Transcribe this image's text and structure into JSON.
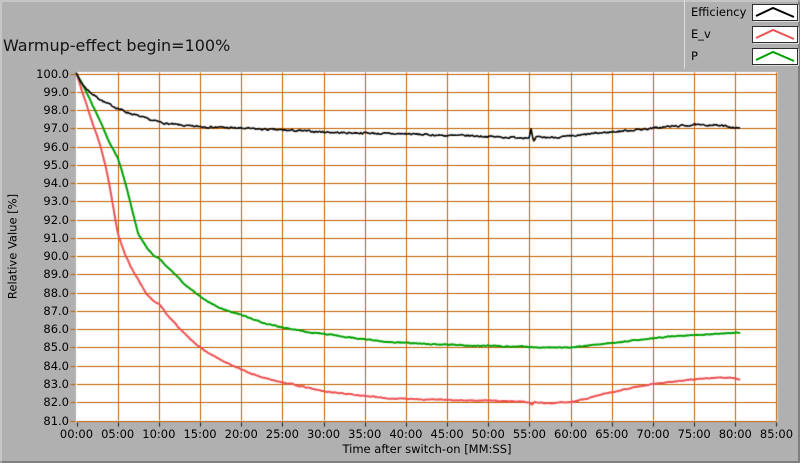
{
  "title": "Warmup-effect begin=100%",
  "colors": {
    "panel_bg": "#b0b0b0",
    "plot_bg": "#ffffff",
    "grid": "#c06100",
    "x_tick": "#1a1a1a",
    "efficiency_line": "#000000",
    "ev_line": "#ed5151",
    "p_line": "#00a000"
  },
  "legend": {
    "items": [
      {
        "label": "Efficiency",
        "color": "#000000"
      },
      {
        "label": "E_v",
        "color": "#ed5151"
      },
      {
        "label": "P",
        "color": "#00a000"
      }
    ]
  },
  "chart_data": {
    "type": "line",
    "title": "Warmup-effect begin=100%",
    "xlabel": "Time after switch-on [MM:SS]",
    "ylabel": "Relative Value [%]",
    "xlim_minutes": [
      0,
      85
    ],
    "ylim": [
      81.0,
      100.0
    ],
    "grid": "on",
    "legend_position": "top-right",
    "x_ticks": [
      "00:00",
      "05:00",
      "10:00",
      "15:00",
      "20:00",
      "25:00",
      "30:00",
      "35:00",
      "40:00",
      "45:00",
      "50:00",
      "55:00",
      "60:00",
      "65:00",
      "70:00",
      "75:00",
      "80:00",
      "85:00"
    ],
    "y_ticks": [
      "100.0",
      "99.0",
      "98.0",
      "97.0",
      "96.0",
      "95.0",
      "94.0",
      "93.0",
      "92.0",
      "91.0",
      "90.0",
      "89.0",
      "88.0",
      "87.0",
      "86.0",
      "85.0",
      "84.0",
      "83.0",
      "82.0",
      "81.0"
    ],
    "series": [
      {
        "name": "Efficiency",
        "color": "#000000",
        "line_width": 1.6,
        "noise": 0.085,
        "seed": 7,
        "points": [
          [
            0,
            100
          ],
          [
            0.5,
            99.55
          ],
          [
            1,
            99.25
          ],
          [
            1.5,
            99.05
          ],
          [
            2,
            98.85
          ],
          [
            2.5,
            98.7
          ],
          [
            3,
            98.55
          ],
          [
            3.5,
            98.4
          ],
          [
            4,
            98.3
          ],
          [
            4.5,
            98.2
          ],
          [
            5,
            98.1
          ],
          [
            6,
            97.9
          ],
          [
            7,
            97.75
          ],
          [
            8,
            97.6
          ],
          [
            9,
            97.45
          ],
          [
            10,
            97.35
          ],
          [
            11,
            97.25
          ],
          [
            12,
            97.2
          ],
          [
            13,
            97.15
          ],
          [
            14,
            97.1
          ],
          [
            15,
            97.1
          ],
          [
            17.5,
            97.05
          ],
          [
            20,
            97.0
          ],
          [
            22.5,
            96.95
          ],
          [
            25,
            96.9
          ],
          [
            27.5,
            96.85
          ],
          [
            30,
            96.8
          ],
          [
            32.5,
            96.75
          ],
          [
            35,
            96.75
          ],
          [
            37.5,
            96.7
          ],
          [
            40,
            96.7
          ],
          [
            42.5,
            96.65
          ],
          [
            45,
            96.6
          ],
          [
            47.5,
            96.6
          ],
          [
            50,
            96.55
          ],
          [
            52.5,
            96.5
          ],
          [
            55,
            96.5
          ],
          [
            55.2,
            96.95
          ],
          [
            55.5,
            96.2
          ],
          [
            55.8,
            96.5
          ],
          [
            57.5,
            96.5
          ],
          [
            60,
            96.55
          ],
          [
            61,
            96.6
          ],
          [
            62.5,
            96.7
          ],
          [
            65,
            96.8
          ],
          [
            67.5,
            96.9
          ],
          [
            70,
            97.0
          ],
          [
            72,
            97.1
          ],
          [
            74,
            97.15
          ],
          [
            75,
            97.2
          ],
          [
            76,
            97.15
          ],
          [
            77,
            97.2
          ],
          [
            78,
            97.15
          ],
          [
            79,
            97.1
          ],
          [
            80,
            97.05
          ],
          [
            80.6,
            96.95
          ]
        ]
      },
      {
        "name": "E_v",
        "color": "#ed5151",
        "line_width": 2.0,
        "noise": 0.04,
        "seed": 13,
        "points": [
          [
            0,
            100
          ],
          [
            0.5,
            99.3
          ],
          [
            1,
            98.6
          ],
          [
            1.5,
            97.9
          ],
          [
            2,
            97.2
          ],
          [
            2.5,
            96.6
          ],
          [
            3,
            95.9
          ],
          [
            3.5,
            95.0
          ],
          [
            4,
            93.9
          ],
          [
            4.5,
            92.6
          ],
          [
            5,
            91.3
          ],
          [
            5.5,
            90.6
          ],
          [
            6,
            90.0
          ],
          [
            6.5,
            89.5
          ],
          [
            7,
            89.1
          ],
          [
            7.5,
            88.7
          ],
          [
            8,
            88.3
          ],
          [
            8.5,
            87.9
          ],
          [
            9,
            87.7
          ],
          [
            9.5,
            87.5
          ],
          [
            10,
            87.4
          ],
          [
            11,
            86.8
          ],
          [
            12,
            86.3
          ],
          [
            13,
            85.8
          ],
          [
            14,
            85.4
          ],
          [
            15,
            85.0
          ],
          [
            16,
            84.7
          ],
          [
            17,
            84.45
          ],
          [
            18,
            84.2
          ],
          [
            19,
            84.0
          ],
          [
            20,
            83.8
          ],
          [
            21,
            83.6
          ],
          [
            22,
            83.45
          ],
          [
            23,
            83.3
          ],
          [
            24,
            83.2
          ],
          [
            25,
            83.1
          ],
          [
            26,
            83.0
          ],
          [
            27,
            82.9
          ],
          [
            28,
            82.8
          ],
          [
            29,
            82.7
          ],
          [
            30,
            82.6
          ],
          [
            31,
            82.55
          ],
          [
            32,
            82.5
          ],
          [
            33,
            82.45
          ],
          [
            34,
            82.4
          ],
          [
            35,
            82.35
          ],
          [
            36,
            82.3
          ],
          [
            37,
            82.25
          ],
          [
            38,
            82.2
          ],
          [
            40,
            82.2
          ],
          [
            42,
            82.15
          ],
          [
            44,
            82.15
          ],
          [
            46,
            82.1
          ],
          [
            48,
            82.1
          ],
          [
            50,
            82.1
          ],
          [
            52,
            82.05
          ],
          [
            54,
            82.05
          ],
          [
            55,
            82.0
          ],
          [
            55.3,
            81.85
          ],
          [
            55.6,
            82.0
          ],
          [
            56,
            82.0
          ],
          [
            57,
            81.95
          ],
          [
            58,
            81.95
          ],
          [
            59,
            82.0
          ],
          [
            60,
            82.0
          ],
          [
            61,
            82.1
          ],
          [
            62,
            82.2
          ],
          [
            63,
            82.35
          ],
          [
            64,
            82.45
          ],
          [
            65,
            82.55
          ],
          [
            66,
            82.65
          ],
          [
            67,
            82.75
          ],
          [
            68,
            82.85
          ],
          [
            69,
            82.9
          ],
          [
            70,
            83.0
          ],
          [
            71,
            83.05
          ],
          [
            72,
            83.1
          ],
          [
            73,
            83.15
          ],
          [
            74,
            83.2
          ],
          [
            75,
            83.25
          ],
          [
            76,
            83.3
          ],
          [
            77,
            83.3
          ],
          [
            78,
            83.35
          ],
          [
            79,
            83.35
          ],
          [
            80,
            83.3
          ],
          [
            80.6,
            83.25
          ]
        ]
      },
      {
        "name": "P",
        "color": "#00a000",
        "line_width": 2.0,
        "noise": 0.04,
        "seed": 29,
        "points": [
          [
            0,
            100
          ],
          [
            0.5,
            99.6
          ],
          [
            1,
            99.2
          ],
          [
            1.5,
            98.7
          ],
          [
            2,
            98.2
          ],
          [
            2.5,
            97.75
          ],
          [
            3,
            97.3
          ],
          [
            3.5,
            96.75
          ],
          [
            4,
            96.2
          ],
          [
            4.5,
            95.8
          ],
          [
            5,
            95.4
          ],
          [
            5.5,
            94.7
          ],
          [
            6,
            93.9
          ],
          [
            6.5,
            93.0
          ],
          [
            7,
            92.1
          ],
          [
            7.5,
            91.2
          ],
          [
            8,
            90.85
          ],
          [
            8.5,
            90.5
          ],
          [
            9,
            90.2
          ],
          [
            9.5,
            90.0
          ],
          [
            10,
            89.9
          ],
          [
            11,
            89.4
          ],
          [
            12,
            89.0
          ],
          [
            13,
            88.5
          ],
          [
            14,
            88.15
          ],
          [
            15,
            87.8
          ],
          [
            16,
            87.5
          ],
          [
            17,
            87.25
          ],
          [
            18,
            87.05
          ],
          [
            19,
            86.9
          ],
          [
            20,
            86.8
          ],
          [
            21,
            86.6
          ],
          [
            22,
            86.45
          ],
          [
            23,
            86.3
          ],
          [
            24,
            86.2
          ],
          [
            25,
            86.1
          ],
          [
            26,
            86.0
          ],
          [
            27,
            85.95
          ],
          [
            28,
            85.85
          ],
          [
            29,
            85.8
          ],
          [
            30,
            85.75
          ],
          [
            31,
            85.7
          ],
          [
            32,
            85.6
          ],
          [
            33,
            85.55
          ],
          [
            34,
            85.5
          ],
          [
            35,
            85.45
          ],
          [
            36,
            85.4
          ],
          [
            37,
            85.35
          ],
          [
            38,
            85.3
          ],
          [
            40,
            85.25
          ],
          [
            42,
            85.2
          ],
          [
            44,
            85.15
          ],
          [
            46,
            85.15
          ],
          [
            48,
            85.1
          ],
          [
            50,
            85.1
          ],
          [
            52,
            85.05
          ],
          [
            54,
            85.05
          ],
          [
            56,
            85.0
          ],
          [
            58,
            85.0
          ],
          [
            60,
            85.0
          ],
          [
            61,
            85.05
          ],
          [
            62,
            85.1
          ],
          [
            63,
            85.15
          ],
          [
            64,
            85.2
          ],
          [
            65,
            85.25
          ],
          [
            66,
            85.3
          ],
          [
            67,
            85.35
          ],
          [
            68,
            85.4
          ],
          [
            69,
            85.45
          ],
          [
            70,
            85.5
          ],
          [
            71,
            85.55
          ],
          [
            72,
            85.6
          ],
          [
            73,
            85.62
          ],
          [
            74,
            85.65
          ],
          [
            75,
            85.68
          ],
          [
            76,
            85.7
          ],
          [
            77,
            85.72
          ],
          [
            78,
            85.75
          ],
          [
            79,
            85.78
          ],
          [
            80,
            85.8
          ],
          [
            80.6,
            85.8
          ]
        ]
      }
    ]
  }
}
